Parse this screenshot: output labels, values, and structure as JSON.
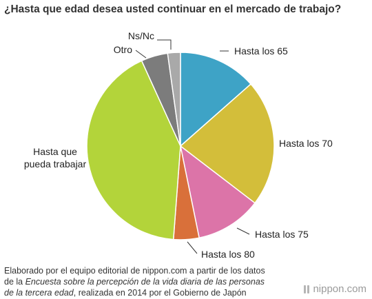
{
  "page": {
    "title": "¿Hasta que edad desea usted continuar en el mercado de trabajo?"
  },
  "chart_data": {
    "type": "pie",
    "title": "¿Hasta que edad desea usted continuar en el mercado de trabajo?",
    "slices": [
      {
        "label": "Hasta los 65",
        "value": 13.5,
        "color": "#3ea3c6"
      },
      {
        "label": "Hasta los 70",
        "value": 21.9,
        "color": "#d3be3a"
      },
      {
        "label": "Hasta los 75",
        "value": 11.4,
        "color": "#dc74a8"
      },
      {
        "label": "Hasta los 80",
        "value": 4.4,
        "color": "#d9703a"
      },
      {
        "label": "Hasta que pueda trabajar",
        "value": 42.0,
        "color": "#b3d43a"
      },
      {
        "label": "Otro",
        "value": 4.6,
        "color": "#7c7c7c"
      },
      {
        "label": "Ns/Nc",
        "value": 2.2,
        "color": "#a9a9a9"
      }
    ],
    "legend": "none",
    "grid": false
  },
  "source": {
    "line1": "Elaborado por el equipo editorial de nippon.com a partir de los datos",
    "line2_prefix": "de la ",
    "line2_italic": "Encuesta sobre la percepción de la vida diaria de las personas",
    "line3_italic": "de la tercera edad",
    "line3_suffix": ", realizada en 2014 por el Gobierno de Japón"
  },
  "brand": {
    "text": "nippon.com",
    "icon": "nippon-logo-icon"
  }
}
